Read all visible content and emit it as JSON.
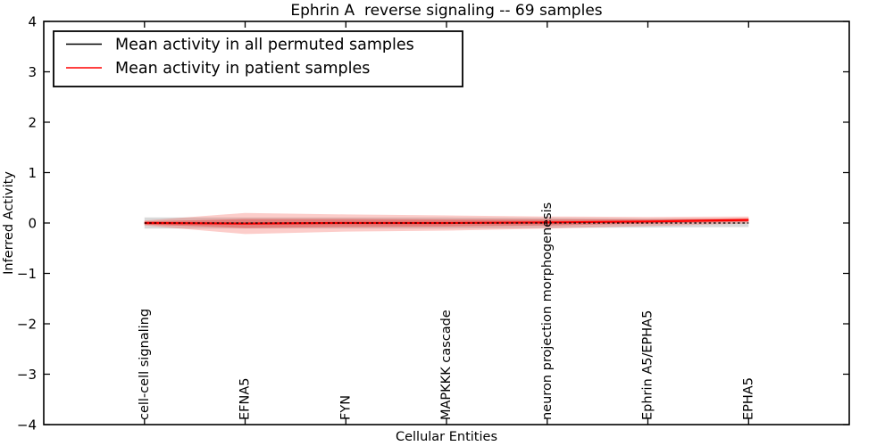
{
  "title": "Ephrin A  reverse signaling -- 69 samples",
  "axes": {
    "xlabel": "Cellular Entities",
    "ylabel": "Inferred Activity",
    "ytick_labels": [
      "4",
      "3",
      "2",
      "1",
      "0",
      "−1",
      "−2",
      "−3",
      "−4"
    ]
  },
  "legend": {
    "items": [
      {
        "label": "Mean activity in all permuted samples",
        "color": "#000000"
      },
      {
        "label": "Mean activity in patient samples",
        "color": "#ff0000"
      }
    ]
  },
  "chart_data": {
    "type": "line",
    "title": "Ephrin A  reverse signaling -- 69 samples",
    "xlabel": "Cellular Entities",
    "ylabel": "Inferred Activity",
    "xlim": [
      0,
      8
    ],
    "ylim": [
      -4,
      4
    ],
    "yticks": [
      4,
      3,
      2,
      1,
      0,
      -1,
      -2,
      -3,
      -4
    ],
    "grid": false,
    "legend_position": "upper left",
    "categories": [
      "cell-cell signaling",
      "EFNA5",
      "FYN",
      "MAPKKK cascade",
      "neuron projection morphogenesis",
      "Ephrin A5/EPHA5",
      "EPHA5"
    ],
    "category_x": [
      1,
      2,
      3,
      4,
      5,
      6,
      7
    ],
    "series": [
      {
        "name": "Mean activity in all permuted samples",
        "color": "#000000",
        "line_style": "dashed",
        "line_width": 1.3,
        "values": [
          0,
          0,
          0,
          0,
          0,
          0,
          0
        ],
        "bands": [
          {
            "name": "permuted-std-band",
            "color": "rgba(130,130,130,0.30)",
            "halfwidths": [
              0.11,
              0.11,
              0.11,
              0.11,
              0.1,
              0.09,
              0.08
            ]
          }
        ]
      },
      {
        "name": "Mean activity in patient samples",
        "color": "#ff0000",
        "line_style": "solid",
        "line_width": 2.2,
        "values": [
          0,
          -0.01,
          0,
          0,
          0.01,
          0.03,
          0.06
        ],
        "bands": [
          {
            "name": "patient-outer-band",
            "color": "rgba(244,60,50,0.26)",
            "halfwidths": [
              0.05,
              0.21,
              0.17,
              0.15,
              0.12,
              0.09,
              0.07
            ]
          },
          {
            "name": "patient-inner-band",
            "color": "rgba(230,45,40,0.38)",
            "halfwidths": [
              0.03,
              0.09,
              0.08,
              0.07,
              0.06,
              0.04,
              0.035
            ]
          }
        ]
      }
    ]
  }
}
